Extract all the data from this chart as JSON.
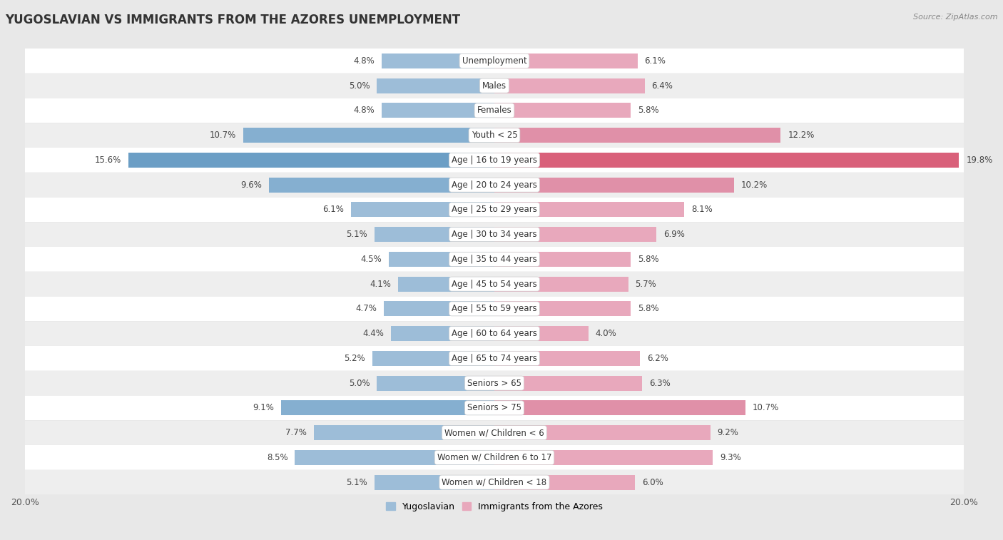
{
  "title": "YUGOSLAVIAN VS IMMIGRANTS FROM THE AZORES UNEMPLOYMENT",
  "source": "Source: ZipAtlas.com",
  "categories": [
    "Unemployment",
    "Males",
    "Females",
    "Youth < 25",
    "Age | 16 to 19 years",
    "Age | 20 to 24 years",
    "Age | 25 to 29 years",
    "Age | 30 to 34 years",
    "Age | 35 to 44 years",
    "Age | 45 to 54 years",
    "Age | 55 to 59 years",
    "Age | 60 to 64 years",
    "Age | 65 to 74 years",
    "Seniors > 65",
    "Seniors > 75",
    "Women w/ Children < 6",
    "Women w/ Children 6 to 17",
    "Women w/ Children < 18"
  ],
  "yugoslavian": [
    4.8,
    5.0,
    4.8,
    10.7,
    15.6,
    9.6,
    6.1,
    5.1,
    4.5,
    4.1,
    4.7,
    4.4,
    5.2,
    5.0,
    9.1,
    7.7,
    8.5,
    5.1
  ],
  "azores": [
    6.1,
    6.4,
    5.8,
    12.2,
    19.8,
    10.2,
    8.1,
    6.9,
    5.8,
    5.7,
    5.8,
    4.0,
    6.2,
    6.3,
    10.7,
    9.2,
    9.3,
    6.0
  ],
  "yugoslav_color_normal": "#9dbdd8",
  "yugoslav_color_strong": "#6b9ec5",
  "azores_color_normal": "#e8a8bc",
  "azores_color_strong": "#d9607a",
  "row_bg_white": "#ffffff",
  "row_bg_gray": "#eeeeee",
  "fig_bg": "#e8e8e8",
  "xlim": 20.0,
  "bar_height": 0.6,
  "label_fontsize": 8.5,
  "value_fontsize": 8.5,
  "title_fontsize": 12,
  "source_fontsize": 8,
  "legend_yugoslav": "Yugoslavian",
  "legend_azores": "Immigrants from the Azores"
}
